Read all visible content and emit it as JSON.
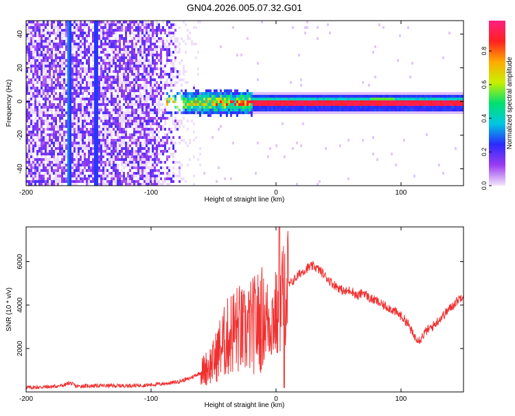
{
  "chart_data": [
    {
      "type": "heatmap",
      "title": "GN04.2026.005.07.32.G01",
      "xlabel": "Height of straight line (km)",
      "ylabel": "Frequency (Hz)",
      "xlim": [
        -200,
        150
      ],
      "ylim": [
        -50,
        48
      ],
      "xticks": [
        -200,
        -100,
        0,
        100
      ],
      "yticks": [
        -40,
        -20,
        0,
        20,
        40
      ],
      "colorbar": {
        "label": "Normalized spectral amplitude",
        "range": [
          0.0,
          0.98
        ],
        "ticks": [
          0.0,
          0.2,
          0.4,
          0.6,
          0.8
        ],
        "colors": [
          "#f2e6fa",
          "#9a3cf0",
          "#2a2aff",
          "#00c8e0",
          "#00e070",
          "#c8f000",
          "#ffaa00",
          "#ff2020",
          "#ff2080"
        ]
      },
      "features": {
        "noise_region_x": [
          -200,
          -70
        ],
        "signal_band_center_hz": 0,
        "signal_band_start_x": -88,
        "vertical_streaks_x": [
          -167,
          -165,
          -145
        ]
      }
    },
    {
      "type": "line",
      "title": "",
      "xlabel": "Height of straight line (km)",
      "ylabel": "SNR (10 * v/v)",
      "xlim": [
        -200,
        150
      ],
      "ylim": [
        0,
        7600
      ],
      "xticks": [
        -200,
        -100,
        0,
        100
      ],
      "yticks": [
        2000,
        4000,
        6000
      ],
      "series": [
        {
          "name": "SNR",
          "color": "#f03030",
          "points": [
            [
              -200,
              200
            ],
            [
              -190,
              220
            ],
            [
              -180,
              240
            ],
            [
              -170,
              300
            ],
            [
              -165,
              420
            ],
            [
              -160,
              260
            ],
            [
              -150,
              280
            ],
            [
              -140,
              290
            ],
            [
              -130,
              280
            ],
            [
              -120,
              290
            ],
            [
              -110,
              300
            ],
            [
              -100,
              330
            ],
            [
              -90,
              380
            ],
            [
              -80,
              450
            ],
            [
              -70,
              600
            ],
            [
              -60,
              900
            ],
            [
              -50,
              1400
            ],
            [
              -45,
              2000
            ],
            [
              -40,
              2400
            ],
            [
              -35,
              2800
            ],
            [
              -30,
              2900
            ],
            [
              -25,
              2700
            ],
            [
              -20,
              3000
            ],
            [
              -15,
              3200
            ],
            [
              -10,
              3400
            ],
            [
              -5,
              3300
            ],
            [
              0,
              3600
            ],
            [
              2,
              3000
            ],
            [
              4,
              4200
            ],
            [
              7,
              5000
            ],
            [
              10,
              4900
            ],
            [
              15,
              5200
            ],
            [
              20,
              5500
            ],
            [
              25,
              5700
            ],
            [
              30,
              5800
            ],
            [
              35,
              5600
            ],
            [
              40,
              5300
            ],
            [
              45,
              5000
            ],
            [
              50,
              4800
            ],
            [
              55,
              4600
            ],
            [
              60,
              4700
            ],
            [
              65,
              4400
            ],
            [
              70,
              4600
            ],
            [
              75,
              4300
            ],
            [
              80,
              4200
            ],
            [
              85,
              4000
            ],
            [
              90,
              3900
            ],
            [
              95,
              3700
            ],
            [
              100,
              3500
            ],
            [
              105,
              3200
            ],
            [
              110,
              2600
            ],
            [
              115,
              2400
            ],
            [
              120,
              2800
            ],
            [
              125,
              3000
            ],
            [
              130,
              3300
            ],
            [
              135,
              3600
            ],
            [
              140,
              3900
            ],
            [
              145,
              4200
            ],
            [
              150,
              4500
            ]
          ]
        }
      ]
    }
  ]
}
